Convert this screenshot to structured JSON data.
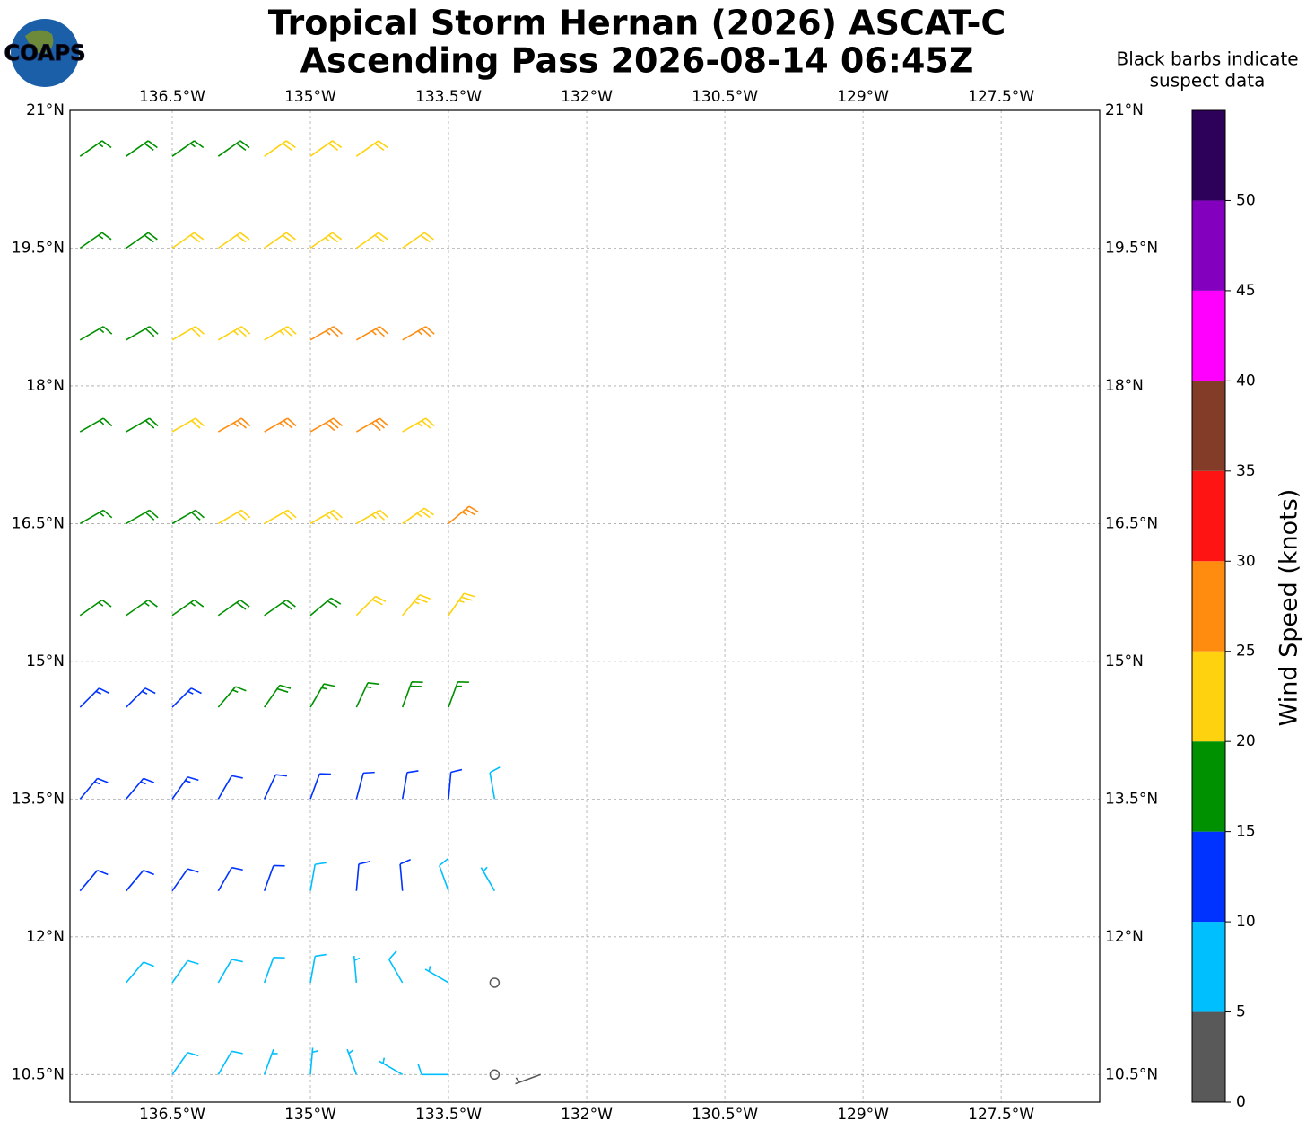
{
  "title": [
    "Tropical Storm Hernan (2026) ASCAT-C",
    "Ascending Pass 2026-08-14 06:45Z"
  ],
  "logo_text": "COAPS",
  "note": [
    "Black barbs indicate",
    "suspect data"
  ],
  "map": {
    "xlim": [
      -137.61,
      -126.43
    ],
    "ylim": [
      10.2,
      21
    ],
    "grid": true,
    "xticks": [
      {
        "value": -136.5,
        "label": "136.5°W"
      },
      {
        "value": -135,
        "label": "135°W"
      },
      {
        "value": -133.5,
        "label": "133.5°W"
      },
      {
        "value": -132,
        "label": "132°W"
      },
      {
        "value": -130.5,
        "label": "130.5°W"
      },
      {
        "value": -129,
        "label": "129°W"
      },
      {
        "value": -127.5,
        "label": "127.5°W"
      }
    ],
    "yticks": [
      {
        "value": 10.5,
        "label": "10.5°N"
      },
      {
        "value": 12,
        "label": "12°N"
      },
      {
        "value": 13.5,
        "label": "13.5°N"
      },
      {
        "value": 15,
        "label": "15°N"
      },
      {
        "value": 16.5,
        "label": "16.5°N"
      },
      {
        "value": 18,
        "label": "18°N"
      },
      {
        "value": 19.5,
        "label": "19.5°N"
      },
      {
        "value": 21,
        "label": "21°N"
      }
    ],
    "lons": [
      -137.5,
      -137,
      -136.5,
      -136,
      -135.5,
      -135,
      -134.5,
      -134,
      -133.5,
      -133,
      -132.5
    ],
    "lats": [
      20.5,
      19.5,
      18.5,
      17.5,
      16.5,
      15.5,
      14.5,
      13.5,
      12.5,
      11.5,
      10.5
    ],
    "speed": [
      [
        17,
        18,
        17,
        19,
        21,
        22,
        21,
        null,
        null,
        null,
        null
      ],
      [
        17,
        18,
        21,
        22,
        22,
        23,
        22,
        21,
        null,
        null,
        null
      ],
      [
        17,
        19,
        22,
        23,
        24,
        27,
        27,
        26,
        null,
        null,
        null
      ],
      [
        17,
        19,
        22,
        26,
        27,
        28,
        28,
        24,
        null,
        null,
        null
      ],
      [
        17,
        18,
        18,
        20,
        22,
        24,
        23,
        24,
        27,
        null,
        null
      ],
      [
        16,
        17,
        17,
        18,
        18,
        19,
        22,
        23,
        24,
        null,
        null
      ],
      [
        13,
        14,
        14,
        16,
        18,
        17,
        17,
        18,
        16,
        null,
        null
      ],
      [
        13,
        13,
        13,
        12,
        12,
        12,
        11,
        12,
        11,
        8,
        null
      ],
      [
        11,
        11,
        12,
        12,
        11,
        9,
        11,
        10,
        8,
        7,
        null
      ],
      [
        null,
        8,
        9,
        8,
        8,
        8,
        7,
        8,
        5,
        2,
        null
      ],
      [
        null,
        null,
        8,
        8,
        7,
        7,
        7,
        6,
        8,
        2,
        3
      ]
    ],
    "direction": [
      [
        55,
        55,
        55,
        55,
        55,
        55,
        55,
        null,
        null,
        null,
        null
      ],
      [
        55,
        55,
        55,
        55,
        55,
        55,
        55,
        55,
        null,
        null,
        null
      ],
      [
        60,
        60,
        60,
        60,
        60,
        60,
        60,
        60,
        null,
        null,
        null
      ],
      [
        60,
        60,
        60,
        60,
        60,
        60,
        60,
        60,
        null,
        null,
        null
      ],
      [
        60,
        60,
        60,
        60,
        60,
        60,
        60,
        55,
        50,
        null,
        null
      ],
      [
        55,
        55,
        55,
        55,
        55,
        50,
        45,
        40,
        35,
        null,
        null
      ],
      [
        45,
        45,
        45,
        40,
        35,
        30,
        25,
        20,
        20,
        null,
        null
      ],
      [
        40,
        40,
        35,
        30,
        25,
        20,
        15,
        10,
        5,
        350,
        null
      ],
      [
        40,
        40,
        35,
        30,
        20,
        10,
        5,
        355,
        340,
        330,
        null
      ],
      [
        null,
        40,
        35,
        30,
        20,
        10,
        355,
        330,
        300,
        0,
        null
      ],
      [
        null,
        null,
        35,
        30,
        20,
        5,
        340,
        300,
        270,
        260,
        250
      ]
    ]
  },
  "colorbar": {
    "label": "Wind Speed (knots)",
    "clim": [
      0,
      55
    ],
    "ticks": [
      0,
      5,
      10,
      15,
      20,
      25,
      30,
      35,
      40,
      45,
      50
    ],
    "colors": [
      "#595959",
      "#00bfff",
      "#0033ff",
      "#009100",
      "#ffd20f",
      "#ff8c0f",
      "#ff1414",
      "#823c28",
      "#ff00ff",
      "#8200be",
      "#2d005a"
    ]
  }
}
